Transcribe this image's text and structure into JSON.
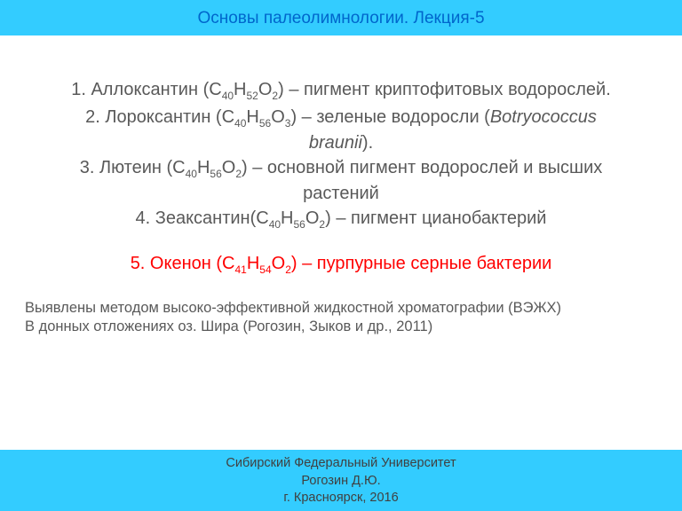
{
  "colors": {
    "band_bg": "#33ccff",
    "header_text": "#0066cc",
    "body_text": "#595959",
    "accent_red": "#ff0000",
    "footer_text": "#404040"
  },
  "header": {
    "title": "Основы палеолимнологии. Лекция-5"
  },
  "items": [
    {
      "pre": "1. Аллоксантин (С",
      "s1": "40",
      "m1": "Н",
      "s2": "52",
      "m2": "О",
      "s3": "2",
      "post": ") – пигмент криптофитовых водорослей."
    },
    {
      "pre": "2. Лороксантин  (С",
      "s1": "40",
      "m1": "Н",
      "s2": "56",
      "m2": "О",
      "s3": "3",
      "post_a": ") – зеленые водоросли (",
      "ital": "Botryococcus braunii",
      "post_b": ")."
    },
    {
      "pre": "3. Лютеин (С",
      "s1": "40",
      "m1": "Н",
      "s2": "56",
      "m2": "О",
      "s3": "2",
      "post": ") – основной пигмент водорослей и высших растений"
    },
    {
      "pre": "4. Зеаксантин(С",
      "s1": "40",
      "m1": "Н",
      "s2": "56",
      "m2": "О",
      "s3": "2",
      "post": ") – пигмент цианобактерий"
    },
    {
      "pre": "5. Окенон (С",
      "s1": "41",
      "m1": "Н",
      "s2": "54",
      "m2": "О",
      "s3": "2",
      "post": ") – пурпурные серные бактерии"
    }
  ],
  "note": {
    "line1": "Выявлены методом высоко-эффективной жидкостной хроматографии (ВЭЖХ)",
    "line2": "В донных отложениях оз. Шира (Рогозин, Зыков и др., 2011)"
  },
  "footer": {
    "line1": "Сибирский Федеральный Университет",
    "line2": "Рогозин Д.Ю.",
    "line3": "г. Красноярск, 2016"
  }
}
